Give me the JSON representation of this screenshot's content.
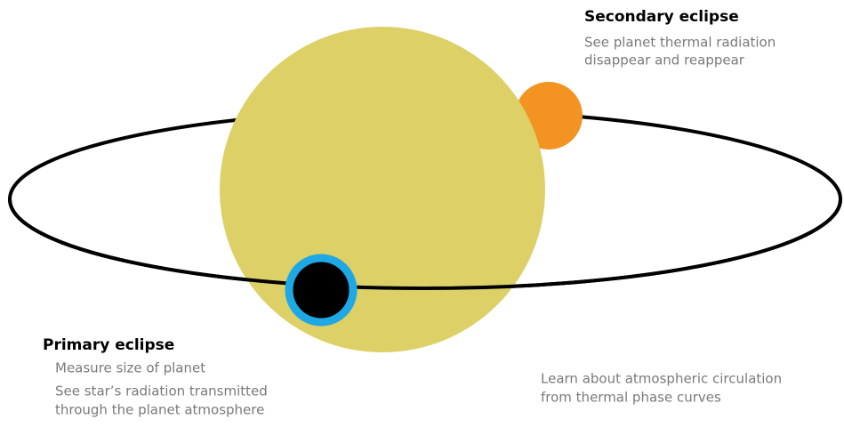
{
  "annotations": {
    "secondary_eclipse": {
      "title": "Secondary eclipse",
      "lines": [
        "See planet thermal radiation",
        "disappear and reappear"
      ]
    },
    "primary_eclipse": {
      "title": "Primary eclipse",
      "lines": [
        "Measure size of planet",
        "See star’s radiation transmitted",
        "through the planet atmosphere"
      ]
    },
    "phase_curves": {
      "lines": [
        "Learn about atmospheric circulation",
        "from thermal phase curves"
      ]
    }
  }
}
